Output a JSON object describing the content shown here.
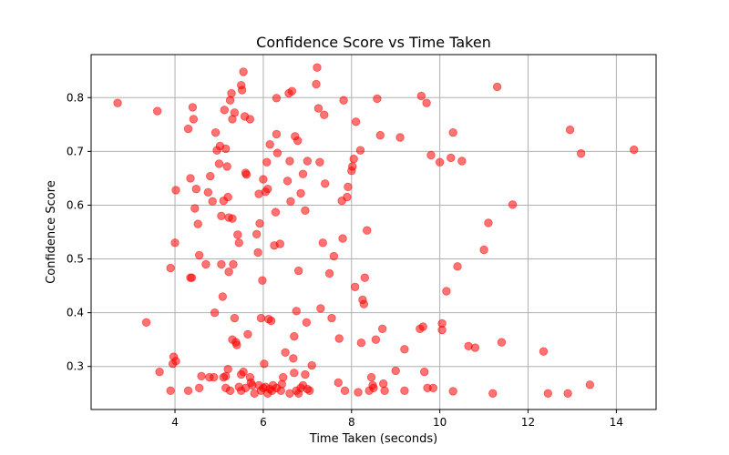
{
  "chart_data": {
    "type": "scatter",
    "title": "Confidence Score vs Time Taken",
    "xlabel": "Time Taken (seconds)",
    "ylabel": "Confidence Score",
    "xlim": [
      2.1,
      14.9
    ],
    "ylim": [
      0.22,
      0.88
    ],
    "xticks": [
      4,
      6,
      8,
      10,
      12,
      14
    ],
    "yticks": [
      0.3,
      0.4,
      0.5,
      0.6,
      0.7,
      0.8
    ],
    "grid": true,
    "marker_color": "#ff0000",
    "marker_alpha": 0.55,
    "points": [
      [
        2.7,
        0.79
      ],
      [
        3.6,
        0.775
      ],
      [
        3.35,
        0.382
      ],
      [
        3.65,
        0.29
      ],
      [
        3.9,
        0.483
      ],
      [
        3.9,
        0.255
      ],
      [
        3.95,
        0.305
      ],
      [
        3.97,
        0.318
      ],
      [
        4.02,
        0.31
      ],
      [
        4.0,
        0.53
      ],
      [
        4.02,
        0.628
      ],
      [
        4.3,
        0.742
      ],
      [
        4.4,
        0.782
      ],
      [
        4.42,
        0.76
      ],
      [
        4.35,
        0.65
      ],
      [
        4.45,
        0.594
      ],
      [
        4.48,
        0.63
      ],
      [
        4.52,
        0.565
      ],
      [
        4.55,
        0.507
      ],
      [
        4.35,
        0.465
      ],
      [
        4.38,
        0.465
      ],
      [
        4.3,
        0.255
      ],
      [
        4.55,
        0.26
      ],
      [
        4.6,
        0.282
      ],
      [
        4.7,
        0.49
      ],
      [
        4.75,
        0.624
      ],
      [
        4.8,
        0.654
      ],
      [
        4.78,
        0.28
      ],
      [
        4.85,
        0.607
      ],
      [
        4.88,
        0.28
      ],
      [
        4.9,
        0.4
      ],
      [
        4.92,
        0.735
      ],
      [
        4.95,
        0.702
      ],
      [
        5.0,
        0.677
      ],
      [
        5.02,
        0.71
      ],
      [
        5.05,
        0.49
      ],
      [
        5.08,
        0.43
      ],
      [
        5.05,
        0.58
      ],
      [
        5.1,
        0.608
      ],
      [
        5.15,
        0.705
      ],
      [
        5.12,
        0.777
      ],
      [
        5.15,
        0.282
      ],
      [
        5.18,
        0.672
      ],
      [
        5.2,
        0.615
      ],
      [
        5.22,
        0.476
      ],
      [
        5.22,
        0.577
      ],
      [
        5.25,
        0.795
      ],
      [
        5.28,
        0.808
      ],
      [
        5.3,
        0.76
      ],
      [
        5.3,
        0.575
      ],
      [
        5.32,
        0.49
      ],
      [
        5.35,
        0.772
      ],
      [
        5.38,
        0.345
      ],
      [
        5.4,
        0.34
      ],
      [
        5.42,
        0.545
      ],
      [
        5.45,
        0.53
      ],
      [
        5.5,
        0.823
      ],
      [
        5.52,
        0.814
      ],
      [
        5.55,
        0.848
      ],
      [
        5.58,
        0.765
      ],
      [
        5.6,
        0.66
      ],
      [
        5.62,
        0.657
      ],
      [
        5.65,
        0.36
      ],
      [
        5.7,
        0.76
      ],
      [
        5.72,
        0.27
      ],
      [
        5.1,
        0.28
      ],
      [
        5.15,
        0.26
      ],
      [
        5.2,
        0.295
      ],
      [
        5.25,
        0.255
      ],
      [
        5.3,
        0.35
      ],
      [
        5.35,
        0.39
      ],
      [
        5.45,
        0.262
      ],
      [
        5.5,
        0.285
      ],
      [
        5.55,
        0.29
      ],
      [
        5.5,
        0.255
      ],
      [
        5.6,
        0.26
      ],
      [
        5.7,
        0.28
      ],
      [
        5.75,
        0.265
      ],
      [
        5.8,
        0.25
      ],
      [
        5.85,
        0.546
      ],
      [
        5.88,
        0.512
      ],
      [
        5.9,
        0.621
      ],
      [
        5.92,
        0.566
      ],
      [
        5.95,
        0.39
      ],
      [
        5.98,
        0.46
      ],
      [
        6.0,
        0.648
      ],
      [
        6.02,
        0.305
      ],
      [
        6.05,
        0.625
      ],
      [
        6.08,
        0.68
      ],
      [
        6.1,
        0.63
      ],
      [
        6.12,
        0.388
      ],
      [
        6.15,
        0.713
      ],
      [
        6.18,
        0.385
      ],
      [
        6.22,
        0.265
      ],
      [
        6.25,
        0.525
      ],
      [
        6.28,
        0.587
      ],
      [
        6.3,
        0.732
      ],
      [
        6.3,
        0.799
      ],
      [
        6.32,
        0.697
      ],
      [
        6.38,
        0.528
      ],
      [
        6.42,
        0.267
      ],
      [
        6.45,
        0.28
      ],
      [
        6.5,
        0.326
      ],
      [
        6.55,
        0.645
      ],
      [
        6.58,
        0.808
      ],
      [
        6.6,
        0.682
      ],
      [
        6.62,
        0.607
      ],
      [
        6.65,
        0.812
      ],
      [
        6.68,
        0.315
      ],
      [
        6.7,
        0.356
      ],
      [
        6.72,
        0.728
      ],
      [
        6.75,
        0.403
      ],
      [
        6.78,
        0.72
      ],
      [
        6.8,
        0.478
      ],
      [
        6.85,
        0.622
      ],
      [
        6.9,
        0.658
      ],
      [
        6.95,
        0.59
      ],
      [
        6.98,
        0.382
      ],
      [
        7.0,
        0.682
      ],
      [
        7.1,
        0.302
      ],
      [
        5.9,
        0.265
      ],
      [
        5.95,
        0.255
      ],
      [
        6.0,
        0.26
      ],
      [
        6.05,
        0.262
      ],
      [
        6.1,
        0.25
      ],
      [
        6.15,
        0.258
      ],
      [
        6.2,
        0.255
      ],
      [
        6.3,
        0.26
      ],
      [
        6.4,
        0.255
      ],
      [
        6.6,
        0.25
      ],
      [
        6.7,
        0.288
      ],
      [
        6.75,
        0.255
      ],
      [
        6.8,
        0.25
      ],
      [
        6.85,
        0.26
      ],
      [
        6.9,
        0.265
      ],
      [
        6.95,
        0.285
      ],
      [
        7.0,
        0.258
      ],
      [
        7.05,
        0.255
      ],
      [
        7.2,
        0.825
      ],
      [
        7.22,
        0.856
      ],
      [
        7.25,
        0.78
      ],
      [
        7.28,
        0.68
      ],
      [
        7.3,
        0.408
      ],
      [
        7.35,
        0.53
      ],
      [
        7.38,
        0.768
      ],
      [
        7.4,
        0.64
      ],
      [
        7.5,
        0.473
      ],
      [
        7.55,
        0.39
      ],
      [
        7.6,
        0.505
      ],
      [
        7.7,
        0.27
      ],
      [
        7.72,
        0.352
      ],
      [
        7.78,
        0.608
      ],
      [
        7.8,
        0.538
      ],
      [
        7.82,
        0.795
      ],
      [
        7.85,
        0.255
      ],
      [
        7.9,
        0.615
      ],
      [
        7.92,
        0.634
      ],
      [
        8.0,
        0.664
      ],
      [
        8.02,
        0.672
      ],
      [
        8.05,
        0.686
      ],
      [
        8.08,
        0.448
      ],
      [
        8.1,
        0.755
      ],
      [
        8.15,
        0.252
      ],
      [
        8.2,
        0.702
      ],
      [
        8.22,
        0.344
      ],
      [
        8.25,
        0.424
      ],
      [
        8.28,
        0.416
      ],
      [
        8.3,
        0.465
      ],
      [
        8.35,
        0.553
      ],
      [
        8.4,
        0.255
      ],
      [
        8.45,
        0.28
      ],
      [
        8.48,
        0.265
      ],
      [
        8.5,
        0.26
      ],
      [
        8.55,
        0.35
      ],
      [
        8.58,
        0.798
      ],
      [
        8.65,
        0.73
      ],
      [
        8.7,
        0.37
      ],
      [
        8.72,
        0.268
      ],
      [
        8.75,
        0.255
      ],
      [
        9.0,
        0.292
      ],
      [
        9.1,
        0.726
      ],
      [
        9.2,
        0.255
      ],
      [
        9.2,
        0.332
      ],
      [
        9.55,
        0.37
      ],
      [
        9.58,
        0.803
      ],
      [
        9.62,
        0.374
      ],
      [
        9.65,
        0.29
      ],
      [
        9.7,
        0.79
      ],
      [
        9.72,
        0.26
      ],
      [
        9.8,
        0.693
      ],
      [
        9.85,
        0.26
      ],
      [
        10.0,
        0.68
      ],
      [
        10.05,
        0.368
      ],
      [
        10.05,
        0.38
      ],
      [
        10.15,
        0.44
      ],
      [
        10.25,
        0.688
      ],
      [
        10.3,
        0.735
      ],
      [
        10.3,
        0.254
      ],
      [
        10.4,
        0.486
      ],
      [
        10.5,
        0.682
      ],
      [
        10.65,
        0.338
      ],
      [
        10.8,
        0.335
      ],
      [
        11.0,
        0.517
      ],
      [
        11.1,
        0.567
      ],
      [
        11.2,
        0.25
      ],
      [
        11.3,
        0.82
      ],
      [
        11.4,
        0.345
      ],
      [
        11.65,
        0.601
      ],
      [
        12.35,
        0.328
      ],
      [
        12.45,
        0.25
      ],
      [
        12.9,
        0.25
      ],
      [
        12.95,
        0.74
      ],
      [
        13.2,
        0.696
      ],
      [
        13.4,
        0.266
      ],
      [
        14.4,
        0.703
      ]
    ]
  }
}
